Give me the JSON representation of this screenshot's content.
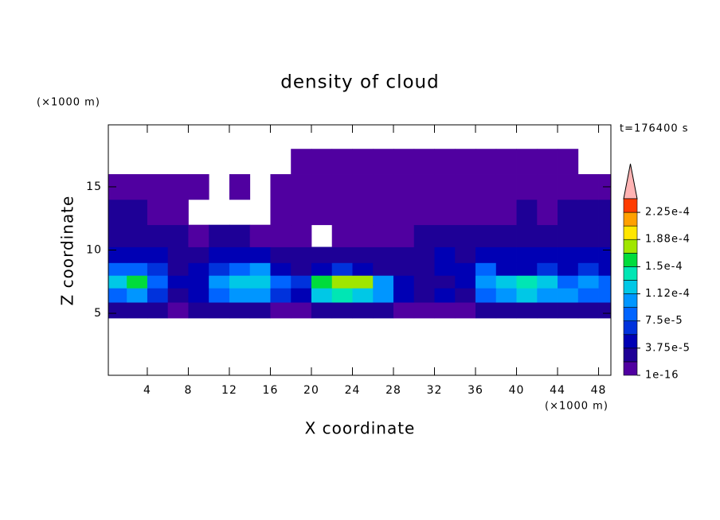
{
  "chart_data": {
    "type": "contour",
    "title": "density of cloud",
    "x_label": "X coordinate",
    "y_label": "Z coordinate",
    "x_unit": "(×1000 m)",
    "y_unit": "(×1000 m)",
    "time_label": "t=176400 s",
    "xlim": [
      0.2,
      49.2
    ],
    "ylim": [
      0.1,
      19.9
    ],
    "xticks": [
      4,
      8,
      12,
      16,
      20,
      24,
      28,
      32,
      36,
      40,
      44,
      48
    ],
    "yticks": [
      5,
      10,
      15
    ],
    "x": [
      1,
      3,
      5,
      7,
      9,
      11,
      13,
      15,
      17,
      19,
      21,
      23,
      25,
      27,
      29,
      31,
      33,
      35,
      37,
      39,
      41,
      43,
      45,
      47,
      49
    ],
    "y": [
      5.25,
      6.5,
      7.5,
      8.5,
      9.5,
      11,
      13,
      15,
      17
    ],
    "z": [
      [
        2e-05,
        2.5e-05,
        2e-05,
        1.5e-05,
        2e-05,
        3e-05,
        2.5e-05,
        2e-05,
        1.5e-05,
        1e-05,
        2e-05,
        2.5e-05,
        3e-05,
        2e-05,
        1.5e-05,
        1e-05,
        1e-05,
        1.5e-05,
        2e-05,
        2.5e-05,
        3e-05,
        2.5e-05,
        2e-05,
        2e-05,
        2.5e-05
      ],
      [
        9e-05,
        0.00011,
        6e-05,
        3e-05,
        5e-05,
        9e-05,
        0.00011,
        0.0001,
        6e-05,
        4e-05,
        0.00012,
        0.00014,
        0.00013,
        0.0001,
        5e-05,
        3e-05,
        4e-05,
        3e-05,
        8e-05,
        0.00011,
        0.00012,
        0.00011,
        0.0001,
        9e-05,
        8e-05
      ],
      [
        0.00013,
        0.00015,
        9e-05,
        4e-05,
        5e-05,
        0.0001,
        0.00013,
        0.00012,
        8e-05,
        6e-05,
        0.00015,
        0.00018,
        0.00017,
        0.0001,
        4e-05,
        2e-05,
        3e-05,
        5e-05,
        0.0001,
        0.00013,
        0.00014,
        0.00012,
        9e-05,
        0.0001,
        8e-05
      ],
      [
        8e-05,
        9e-05,
        6e-05,
        3e-05,
        4e-05,
        6e-05,
        9e-05,
        0.0001,
        5e-05,
        3e-05,
        5e-05,
        7e-05,
        4e-05,
        3e-05,
        3e-05,
        3e-05,
        4e-05,
        5e-05,
        8e-05,
        4e-05,
        5e-05,
        6e-05,
        5e-05,
        6e-05,
        5e-05
      ],
      [
        4e-05,
        5e-05,
        4e-05,
        3e-05,
        3e-05,
        4e-05,
        5e-05,
        4e-05,
        3e-05,
        2e-05,
        3e-05,
        3e-05,
        2e-05,
        2e-05,
        3e-05,
        3e-05,
        4e-05,
        3e-05,
        4e-05,
        5e-05,
        4e-05,
        4e-05,
        5e-05,
        4e-05,
        5e-05
      ],
      [
        3e-05,
        3e-05,
        2e-05,
        2e-05,
        1.5e-05,
        2e-05,
        2e-05,
        1e-05,
        1e-05,
        1e-05,
        null,
        1e-05,
        5e-06,
        5e-06,
        1e-05,
        2e-05,
        2e-05,
        2e-05,
        2e-05,
        3e-05,
        2e-05,
        2e-05,
        3e-05,
        2e-05,
        3e-05
      ],
      [
        2e-05,
        2e-05,
        1e-05,
        5e-06,
        null,
        null,
        null,
        null,
        5e-06,
        5e-06,
        5e-06,
        5e-06,
        5e-06,
        5e-06,
        5e-06,
        5e-06,
        5e-06,
        1e-05,
        5e-06,
        1e-05,
        2e-05,
        1e-05,
        2e-05,
        2e-05,
        2e-05
      ],
      [
        1e-05,
        1e-05,
        5e-06,
        5e-06,
        5e-06,
        null,
        5e-06,
        null,
        5e-06,
        5e-06,
        5e-06,
        5e-06,
        5e-06,
        5e-06,
        5e-06,
        5e-06,
        5e-06,
        5e-06,
        5e-06,
        5e-06,
        5e-06,
        5e-06,
        1e-05,
        1e-05,
        5e-06
      ],
      [
        null,
        null,
        null,
        null,
        null,
        null,
        null,
        null,
        null,
        5e-06,
        5e-06,
        5e-06,
        5e-06,
        5e-06,
        5e-06,
        5e-06,
        5e-06,
        5e-06,
        5e-06,
        5e-06,
        5e-06,
        5e-06,
        5e-06,
        null,
        null
      ]
    ],
    "levels": [
      1e-16,
      1.875e-05,
      3.75e-05,
      5.625e-05,
      7.5e-05,
      9.375e-05,
      0.0001125,
      0.00013125,
      0.00015,
      0.00016875,
      0.0001875,
      0.00020625,
      0.000225,
      0.00024375
    ],
    "colors": [
      "#5000a0",
      "#1e0096",
      "#0000b4",
      "#0032dc",
      "#0064ff",
      "#0096ff",
      "#00c8e6",
      "#00e6b4",
      "#00dc3c",
      "#a0e600",
      "#ffe600",
      "#ffa000",
      "#ff3c00"
    ],
    "colorbar_ticks": [
      {
        "value": 1e-16,
        "label": "1e-16"
      },
      {
        "value": 3.75e-05,
        "label": "3.75e-5"
      },
      {
        "value": 7.5e-05,
        "label": "7.5e-5"
      },
      {
        "value": 0.0001125,
        "label": "1.12e-4"
      },
      {
        "value": 0.00015,
        "label": "1.5e-4"
      },
      {
        "value": 0.0001875,
        "label": "1.88e-4"
      },
      {
        "value": 0.000225,
        "label": "2.25e-4"
      }
    ]
  }
}
